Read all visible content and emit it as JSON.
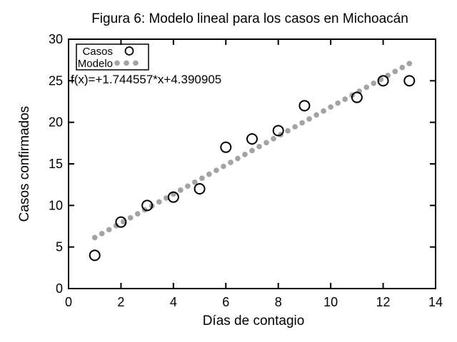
{
  "chart_data": {
    "type": "scatter",
    "title": "Figura 6: Modelo lineal para los casos en Michoacán",
    "xlabel": "Días de contagio",
    "ylabel": "Casos confirmados",
    "xlim": [
      0,
      14
    ],
    "ylim": [
      0,
      30
    ],
    "xticks": [
      0,
      2,
      4,
      6,
      8,
      10,
      12,
      14
    ],
    "yticks": [
      0,
      5,
      10,
      15,
      20,
      25,
      30
    ],
    "grid": false,
    "equation_label": "f(x)=+1.744557*x+4.390905",
    "background": "#ffffff",
    "series": [
      {
        "name": "Casos",
        "type": "scatter",
        "marker": "open-circle",
        "color": "#000000",
        "points": [
          [
            1,
            4
          ],
          [
            2,
            8
          ],
          [
            3,
            10
          ],
          [
            4,
            11
          ],
          [
            5,
            12
          ],
          [
            6,
            17
          ],
          [
            7,
            18
          ],
          [
            8,
            19
          ],
          [
            9,
            22
          ],
          [
            11,
            23
          ],
          [
            12,
            25
          ],
          [
            13,
            25
          ]
        ]
      },
      {
        "name": "Modelo",
        "type": "line-of-points",
        "marker": "asterisk",
        "color": "#a3a3a3",
        "model": {
          "slope": 1.744557,
          "intercept": 4.390905,
          "x_start": 1,
          "x_end": 13,
          "n_points": 45
        }
      }
    ],
    "legend": {
      "position": "top-left",
      "entries": [
        "Casos",
        "Modelo"
      ]
    }
  }
}
